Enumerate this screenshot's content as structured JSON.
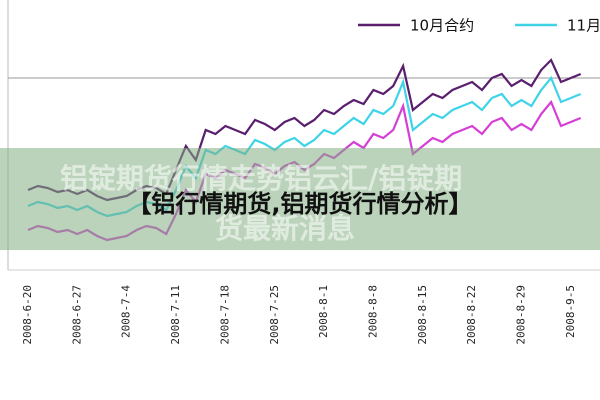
{
  "chart_data": {
    "type": "line",
    "overlay_title": "【铝行情期货,铝期货行情分析】",
    "background_text": [
      "铝锭期货行情走势铝云汇/铝锭期",
      "货最新消息"
    ],
    "categories": [
      "2008-6-20",
      null,
      null,
      null,
      null,
      "2008-6-27",
      null,
      null,
      null,
      null,
      "2008-7-4",
      null,
      null,
      null,
      null,
      "2008-7-11",
      null,
      null,
      null,
      null,
      "2008-7-18",
      null,
      null,
      null,
      null,
      "2008-7-25",
      null,
      null,
      null,
      null,
      "2008-8-1",
      null,
      null,
      null,
      null,
      "2008-8-8",
      null,
      null,
      null,
      null,
      "2008-8-15",
      null,
      null,
      null,
      null,
      "2008-8-22",
      null,
      null,
      null,
      null,
      "2008-8-29",
      null,
      null,
      null,
      null,
      "2008-9-5",
      null
    ],
    "ylim": [
      0,
      100
    ],
    "series": [
      {
        "name": "10月合约",
        "color": "#5a1e6e",
        "values": [
          30,
          32,
          31,
          29,
          30,
          28,
          30,
          27,
          25,
          26,
          27,
          30,
          32,
          31,
          28,
          40,
          52,
          45,
          60,
          58,
          62,
          60,
          58,
          65,
          63,
          60,
          64,
          66,
          62,
          65,
          70,
          68,
          72,
          75,
          73,
          80,
          78,
          82,
          92,
          70,
          74,
          78,
          76,
          80,
          82,
          84,
          80,
          86,
          88,
          82,
          85,
          82,
          90,
          95,
          84,
          86,
          88
        ]
      },
      {
        "name": "11月",
        "color": "#3fd3e8",
        "values": [
          22,
          24,
          23,
          21,
          22,
          20,
          22,
          19,
          17,
          18,
          19,
          22,
          24,
          23,
          20,
          30,
          42,
          36,
          50,
          48,
          52,
          50,
          48,
          55,
          53,
          50,
          54,
          56,
          52,
          55,
          60,
          58,
          62,
          66,
          63,
          70,
          68,
          72,
          84,
          60,
          64,
          68,
          66,
          70,
          72,
          74,
          70,
          76,
          78,
          72,
          75,
          72,
          80,
          86,
          74,
          76,
          78
        ]
      },
      {
        "color": "#d63fd6",
        "values": [
          10,
          12,
          11,
          9,
          10,
          8,
          10,
          7,
          5,
          6,
          7,
          10,
          12,
          11,
          8,
          18,
          30,
          24,
          38,
          36,
          40,
          38,
          36,
          43,
          41,
          38,
          42,
          44,
          40,
          43,
          48,
          46,
          50,
          54,
          51,
          58,
          56,
          60,
          72,
          48,
          52,
          56,
          54,
          58,
          60,
          62,
          58,
          64,
          66,
          60,
          63,
          60,
          68,
          74,
          62,
          64,
          66
        ]
      }
    ]
  }
}
